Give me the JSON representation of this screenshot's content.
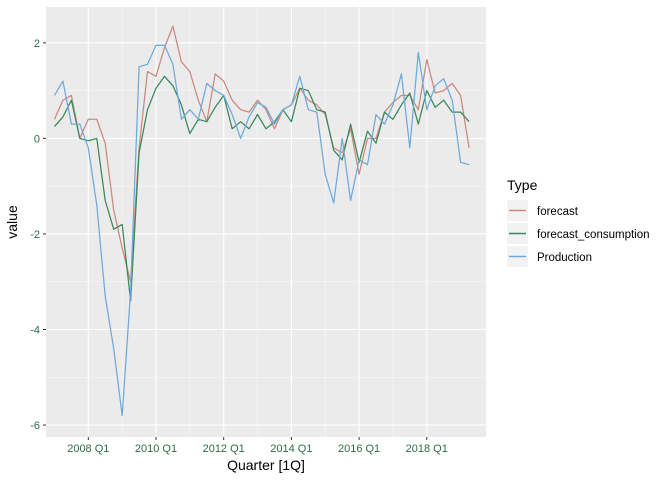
{
  "chart_data": {
    "type": "line",
    "xlabel": "Quarter [1Q]",
    "ylabel": "value",
    "legend_title": "Type",
    "legend_position": "right",
    "grid": true,
    "xlim": [
      2006.75,
      2019.75
    ],
    "ylim": [
      -6.25,
      2.75
    ],
    "x_ticks": [
      {
        "value": 2008,
        "label": "2008 Q1"
      },
      {
        "value": 2010,
        "label": "2010 Q1"
      },
      {
        "value": 2012,
        "label": "2012 Q1"
      },
      {
        "value": 2014,
        "label": "2014 Q1"
      },
      {
        "value": 2016,
        "label": "2016 Q1"
      },
      {
        "value": 2018,
        "label": "2018 Q1"
      }
    ],
    "y_ticks": [
      {
        "value": 2,
        "label": "2"
      },
      {
        "value": 0,
        "label": "0"
      },
      {
        "value": -2,
        "label": "-2"
      },
      {
        "value": -4,
        "label": "-4"
      },
      {
        "value": -6,
        "label": "-6"
      }
    ],
    "x_start": 2007.0,
    "x_step": 0.25,
    "series": [
      {
        "name": "forecast",
        "color": "#cd877d",
        "values": [
          0.4,
          0.8,
          0.9,
          0.0,
          0.4,
          0.4,
          -0.1,
          -1.5,
          -2.3,
          -3.0,
          -0.2,
          1.4,
          1.3,
          1.9,
          2.35,
          1.6,
          1.4,
          0.8,
          0.35,
          1.35,
          1.2,
          0.8,
          0.6,
          0.55,
          0.8,
          0.6,
          0.2,
          0.6,
          0.7,
          1.05,
          0.8,
          0.7,
          0.5,
          -0.2,
          -0.3,
          0.2,
          -0.75,
          0.0,
          0.0,
          0.55,
          0.75,
          0.9,
          0.9,
          0.6,
          1.65,
          0.95,
          1.0,
          1.15,
          0.9,
          -0.2
        ]
      },
      {
        "name": "forecast_consumption",
        "color": "#39885a",
        "values": [
          0.25,
          0.45,
          0.8,
          0.0,
          -0.05,
          0.0,
          -1.3,
          -1.9,
          -1.8,
          -3.4,
          -0.3,
          0.6,
          1.05,
          1.3,
          1.1,
          0.7,
          0.1,
          0.4,
          0.35,
          0.65,
          0.9,
          0.2,
          0.35,
          0.2,
          0.5,
          0.2,
          0.35,
          0.6,
          0.35,
          1.05,
          1.0,
          0.6,
          0.55,
          -0.25,
          -0.45,
          0.3,
          -0.5,
          0.15,
          -0.1,
          0.55,
          0.4,
          0.7,
          0.95,
          0.3,
          1.0,
          0.65,
          0.8,
          0.55,
          0.55,
          0.35
        ]
      },
      {
        "name": "Production",
        "color": "#6ea9dd",
        "values": [
          0.9,
          1.2,
          0.3,
          0.3,
          -0.2,
          -1.4,
          -3.3,
          -4.4,
          -5.8,
          -3.2,
          1.5,
          1.55,
          1.95,
          1.95,
          1.55,
          0.4,
          0.6,
          0.4,
          1.15,
          1.0,
          0.9,
          0.5,
          0.0,
          0.45,
          0.75,
          0.65,
          0.3,
          0.6,
          0.7,
          1.3,
          0.6,
          0.55,
          -0.75,
          -1.35,
          0.0,
          -1.3,
          -0.45,
          -0.55,
          0.5,
          0.3,
          0.7,
          1.35,
          -0.2,
          1.8,
          0.6,
          1.1,
          1.25,
          0.8,
          -0.5,
          -0.55
        ]
      }
    ]
  }
}
